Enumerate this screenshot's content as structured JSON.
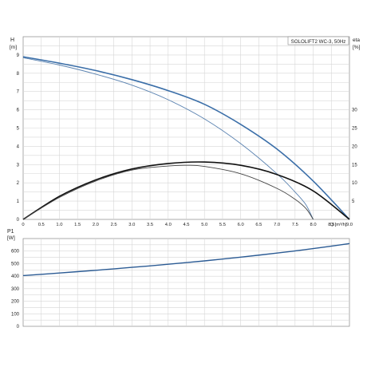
{
  "chart_data": [
    {
      "type": "line",
      "title": "SOLOLIFT2 WC-3, 50Hz",
      "xlabel": "Q [m³/h]",
      "ylabel_left_name": "H",
      "ylabel_left_unit": "[m]",
      "ylabel_right_name": "eta",
      "ylabel_right_unit": "[%]",
      "xlim": [
        0,
        9.0
      ],
      "ylim": [
        0,
        10
      ],
      "ylim_right": [
        0,
        50
      ],
      "x_ticks": [
        "0",
        "0.5",
        "1.0",
        "1.5",
        "2.0",
        "2.5",
        "3.0",
        "3.5",
        "4.0",
        "4.5",
        "5.0",
        "5.5",
        "6.0",
        "6.5",
        "7.0",
        "7.5",
        "8.0",
        "8.5",
        "9.0",
        "Q [m³/h]"
      ],
      "y_ticks": [
        "0",
        "1",
        "2",
        "3",
        "4",
        "5",
        "6",
        "7",
        "8",
        "9"
      ],
      "y_ticks_right": [
        "5",
        "10",
        "15",
        "20",
        "25",
        "30"
      ],
      "grid": true,
      "series": [
        {
          "axis": "left",
          "color": "#3a6ea8",
          "width": 1.6,
          "x": [
            0,
            1,
            2,
            3,
            4,
            5,
            6,
            7,
            8,
            9
          ],
          "y": [
            8.9,
            8.55,
            8.15,
            7.65,
            7.05,
            6.3,
            5.2,
            3.85,
            2.1,
            0
          ]
        },
        {
          "axis": "left",
          "color": "#5a82b0",
          "width": 0.9,
          "x": [
            0,
            1,
            2,
            3,
            4,
            5,
            6,
            7,
            7.5,
            7.8,
            8.0
          ],
          "y": [
            8.85,
            8.45,
            7.95,
            7.35,
            6.55,
            5.5,
            4.15,
            2.5,
            1.5,
            0.8,
            0
          ]
        },
        {
          "axis": "right",
          "color": "#111111",
          "width": 1.6,
          "x": [
            0,
            1,
            2,
            3,
            4,
            5,
            6,
            7,
            8,
            9
          ],
          "y": [
            0,
            6.3,
            10.8,
            13.8,
            15.3,
            15.7,
            14.8,
            12.3,
            7.8,
            0
          ]
        },
        {
          "axis": "right",
          "color": "#444444",
          "width": 0.9,
          "x": [
            0,
            1,
            2,
            3,
            4,
            4.5,
            5,
            6,
            7,
            7.5,
            7.8,
            8.0
          ],
          "y": [
            0,
            6.0,
            10.5,
            13.5,
            14.6,
            14.8,
            14.5,
            12.5,
            8.5,
            5.5,
            3.0,
            0
          ]
        }
      ]
    },
    {
      "type": "line",
      "ylabel_name": "P1",
      "ylabel_unit": "[W]",
      "xlim": [
        0,
        9.0
      ],
      "ylim": [
        0,
        700
      ],
      "y_ticks": [
        "0",
        "100",
        "200",
        "300",
        "400",
        "500",
        "600"
      ],
      "grid": true,
      "series": [
        {
          "color": "#2b5b94",
          "width": 1.4,
          "x": [
            0,
            1,
            2,
            3,
            4,
            5,
            6,
            7,
            8,
            9
          ],
          "y": [
            405,
            425,
            447,
            470,
            495,
            522,
            552,
            584,
            620,
            660
          ]
        }
      ]
    }
  ]
}
